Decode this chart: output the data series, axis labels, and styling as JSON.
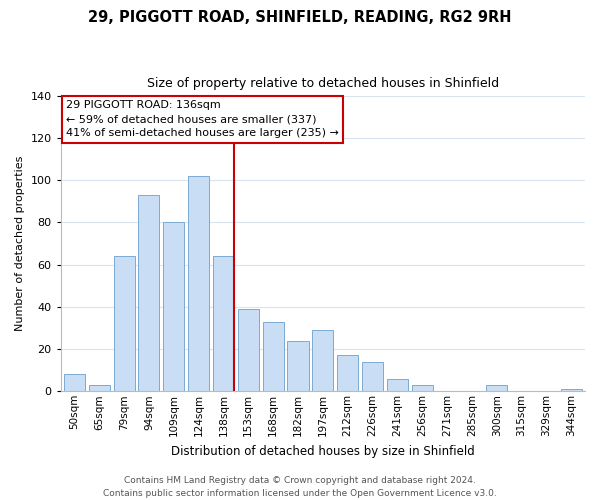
{
  "title": "29, PIGGOTT ROAD, SHINFIELD, READING, RG2 9RH",
  "subtitle": "Size of property relative to detached houses in Shinfield",
  "xlabel": "Distribution of detached houses by size in Shinfield",
  "ylabel": "Number of detached properties",
  "bar_labels": [
    "50sqm",
    "65sqm",
    "79sqm",
    "94sqm",
    "109sqm",
    "124sqm",
    "138sqm",
    "153sqm",
    "168sqm",
    "182sqm",
    "197sqm",
    "212sqm",
    "226sqm",
    "241sqm",
    "256sqm",
    "271sqm",
    "285sqm",
    "300sqm",
    "315sqm",
    "329sqm",
    "344sqm"
  ],
  "bar_values": [
    8,
    3,
    64,
    93,
    80,
    102,
    64,
    39,
    33,
    24,
    29,
    17,
    14,
    6,
    3,
    0,
    0,
    3,
    0,
    0,
    1
  ],
  "bar_color": "#c9ddf5",
  "bar_edge_color": "#7baad4",
  "highlight_index": 6,
  "highlight_line_color": "#cc0000",
  "ylim": [
    0,
    140
  ],
  "yticks": [
    0,
    20,
    40,
    60,
    80,
    100,
    120,
    140
  ],
  "annotation_title": "29 PIGGOTT ROAD: 136sqm",
  "annotation_line1": "← 59% of detached houses are smaller (337)",
  "annotation_line2": "41% of semi-detached houses are larger (235) →",
  "footer_line1": "Contains HM Land Registry data © Crown copyright and database right 2024.",
  "footer_line2": "Contains public sector information licensed under the Open Government Licence v3.0.",
  "bg_color": "#ffffff",
  "grid_color": "#d8e4f0",
  "title_fontsize": 10.5,
  "subtitle_fontsize": 9,
  "ylabel_fontsize": 8,
  "xlabel_fontsize": 8.5,
  "tick_fontsize": 7.5,
  "footer_fontsize": 6.5,
  "ann_fontsize": 8
}
